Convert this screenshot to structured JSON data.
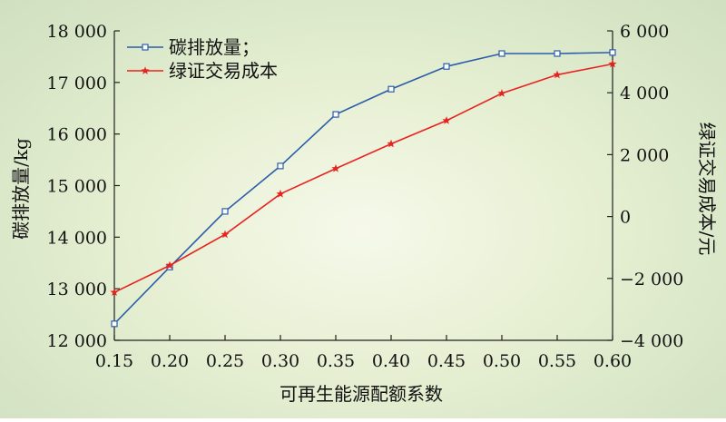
{
  "chart_data": {
    "type": "line",
    "x": [
      0.15,
      0.2,
      0.25,
      0.3,
      0.35,
      0.4,
      0.45,
      0.5,
      0.55,
      0.6
    ],
    "x_tick_labels": [
      "0.15",
      "0.20",
      "0.25",
      "0.30",
      "0.35",
      "0.40",
      "0.45",
      "0.50",
      "0.55",
      "0.60"
    ],
    "xlabel": "可再生能源配额系数",
    "ylabel_left": "碳排放量/kg",
    "ylabel_right": "绿证交易成本/元",
    "ylim_left": [
      12000,
      18000
    ],
    "ylim_right": [
      -4000,
      6000
    ],
    "y_left_tick_values": [
      12000,
      13000,
      14000,
      15000,
      16000,
      17000,
      18000
    ],
    "y_left_tick_labels": [
      "12 000",
      "13 000",
      "14 000",
      "15 000",
      "16 000",
      "17 000",
      "18 000"
    ],
    "y_right_tick_values": [
      -4000,
      -2000,
      0,
      2000,
      4000,
      6000
    ],
    "y_right_tick_labels": [
      "−4 000",
      "−2 000",
      "0",
      "2 000",
      "4 000",
      "6 000"
    ],
    "grid": false,
    "legend_position": "top-left",
    "series": [
      {
        "name": "碳排放量；",
        "axis": "left",
        "color": "#2a5caa",
        "marker": "square",
        "values": [
          12320,
          13420,
          14500,
          15380,
          16380,
          16870,
          17310,
          17560,
          17560,
          17580
        ]
      },
      {
        "name": "绿证交易成本",
        "axis": "right",
        "color": "#e8231f",
        "marker": "star",
        "values": [
          -2450,
          -1580,
          -580,
          730,
          1550,
          2350,
          3100,
          3980,
          4580,
          4930
        ]
      }
    ]
  }
}
